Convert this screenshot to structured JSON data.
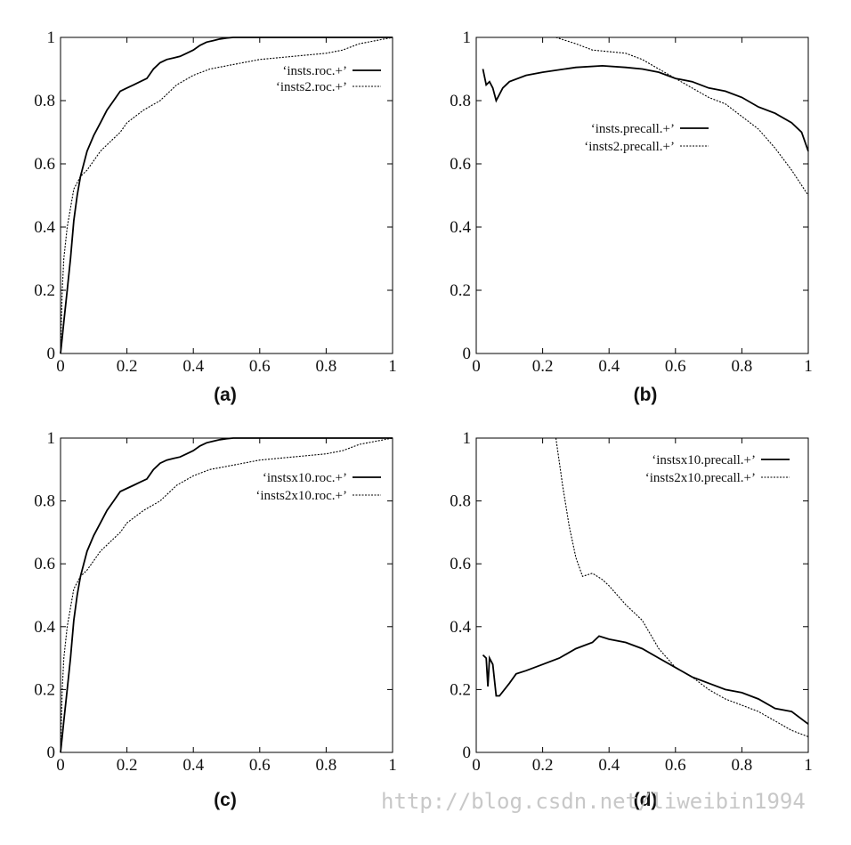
{
  "figure": {
    "watermark": "http://blog.csdn.net/liweibin1994"
  },
  "chart_data": [
    {
      "type": "line",
      "caption": "(a)",
      "xlim": [
        0,
        1
      ],
      "ylim": [
        0,
        1
      ],
      "xticks": [
        "0",
        "0.2",
        "0.4",
        "0.6",
        "0.8",
        "1"
      ],
      "yticks": [
        "0",
        "0.2",
        "0.4",
        "0.6",
        "0.8",
        "1"
      ],
      "legend_position": "top-right",
      "series": [
        {
          "name": "‘insts.roc.+’",
          "style": "solid",
          "x": [
            0,
            0.005,
            0.01,
            0.02,
            0.03,
            0.04,
            0.05,
            0.06,
            0.08,
            0.1,
            0.12,
            0.14,
            0.16,
            0.18,
            0.2,
            0.22,
            0.24,
            0.26,
            0.28,
            0.3,
            0.32,
            0.34,
            0.36,
            0.38,
            0.4,
            0.42,
            0.44,
            0.46,
            0.48,
            0.5,
            0.52,
            1
          ],
          "y": [
            0,
            0.05,
            0.1,
            0.2,
            0.3,
            0.42,
            0.5,
            0.56,
            0.64,
            0.69,
            0.73,
            0.77,
            0.8,
            0.83,
            0.84,
            0.85,
            0.86,
            0.87,
            0.9,
            0.92,
            0.93,
            0.935,
            0.94,
            0.95,
            0.96,
            0.975,
            0.985,
            0.99,
            0.995,
            0.998,
            1,
            1
          ]
        },
        {
          "name": "‘insts2.roc.+’",
          "style": "dashed",
          "x": [
            0,
            0.005,
            0.01,
            0.02,
            0.03,
            0.04,
            0.06,
            0.08,
            0.1,
            0.12,
            0.15,
            0.18,
            0.2,
            0.25,
            0.3,
            0.35,
            0.4,
            0.45,
            0.5,
            0.6,
            0.7,
            0.8,
            0.85,
            0.9,
            0.95,
            1
          ],
          "y": [
            0,
            0.2,
            0.3,
            0.4,
            0.46,
            0.52,
            0.56,
            0.58,
            0.61,
            0.64,
            0.67,
            0.7,
            0.73,
            0.77,
            0.8,
            0.85,
            0.88,
            0.9,
            0.91,
            0.93,
            0.94,
            0.95,
            0.96,
            0.98,
            0.99,
            1
          ]
        }
      ]
    },
    {
      "type": "line",
      "caption": "(b)",
      "xlim": [
        0,
        1
      ],
      "ylim": [
        0,
        1
      ],
      "xticks": [
        "0",
        "0.2",
        "0.4",
        "0.6",
        "0.8",
        "1"
      ],
      "yticks": [
        "0",
        "0.2",
        "0.4",
        "0.6",
        "0.8",
        "1"
      ],
      "legend_position": "right",
      "series": [
        {
          "name": "‘insts.precall.+’",
          "style": "solid",
          "x": [
            0.02,
            0.03,
            0.04,
            0.05,
            0.06,
            0.08,
            0.1,
            0.15,
            0.2,
            0.3,
            0.38,
            0.45,
            0.5,
            0.55,
            0.6,
            0.65,
            0.7,
            0.75,
            0.8,
            0.85,
            0.9,
            0.95,
            0.98,
            1
          ],
          "y": [
            0.9,
            0.85,
            0.86,
            0.84,
            0.8,
            0.84,
            0.86,
            0.88,
            0.89,
            0.905,
            0.91,
            0.905,
            0.9,
            0.89,
            0.87,
            0.86,
            0.84,
            0.83,
            0.81,
            0.78,
            0.76,
            0.73,
            0.7,
            0.64
          ]
        },
        {
          "name": "‘insts2.precall.+’",
          "style": "dashed",
          "x": [
            0.24,
            0.3,
            0.35,
            0.4,
            0.45,
            0.5,
            0.55,
            0.6,
            0.65,
            0.7,
            0.75,
            0.8,
            0.85,
            0.9,
            0.95,
            1
          ],
          "y": [
            1,
            0.98,
            0.96,
            0.955,
            0.95,
            0.93,
            0.9,
            0.87,
            0.84,
            0.81,
            0.79,
            0.75,
            0.71,
            0.65,
            0.58,
            0.5
          ]
        }
      ]
    },
    {
      "type": "line",
      "caption": "(c)",
      "xlim": [
        0,
        1
      ],
      "ylim": [
        0,
        1
      ],
      "xticks": [
        "0",
        "0.2",
        "0.4",
        "0.6",
        "0.8",
        "1"
      ],
      "yticks": [
        "0",
        "0.2",
        "0.4",
        "0.6",
        "0.8",
        "1"
      ],
      "legend_position": "top-right",
      "series": [
        {
          "name": "‘instsx10.roc.+’",
          "style": "solid",
          "x": [
            0,
            0.005,
            0.01,
            0.02,
            0.03,
            0.04,
            0.05,
            0.06,
            0.08,
            0.1,
            0.12,
            0.14,
            0.16,
            0.18,
            0.2,
            0.22,
            0.24,
            0.26,
            0.28,
            0.3,
            0.32,
            0.34,
            0.36,
            0.38,
            0.4,
            0.42,
            0.44,
            0.46,
            0.48,
            0.5,
            0.52,
            1
          ],
          "y": [
            0,
            0.05,
            0.1,
            0.2,
            0.3,
            0.42,
            0.5,
            0.56,
            0.64,
            0.69,
            0.73,
            0.77,
            0.8,
            0.83,
            0.84,
            0.85,
            0.86,
            0.87,
            0.9,
            0.92,
            0.93,
            0.935,
            0.94,
            0.95,
            0.96,
            0.975,
            0.985,
            0.99,
            0.995,
            0.998,
            1,
            1
          ]
        },
        {
          "name": "‘insts2x10.roc.+’",
          "style": "dashed",
          "x": [
            0,
            0.005,
            0.01,
            0.02,
            0.03,
            0.04,
            0.06,
            0.08,
            0.1,
            0.12,
            0.15,
            0.18,
            0.2,
            0.25,
            0.3,
            0.35,
            0.4,
            0.45,
            0.5,
            0.6,
            0.7,
            0.8,
            0.85,
            0.9,
            0.95,
            1
          ],
          "y": [
            0,
            0.2,
            0.3,
            0.4,
            0.46,
            0.52,
            0.56,
            0.58,
            0.61,
            0.64,
            0.67,
            0.7,
            0.73,
            0.77,
            0.8,
            0.85,
            0.88,
            0.9,
            0.91,
            0.93,
            0.94,
            0.95,
            0.96,
            0.98,
            0.99,
            1
          ]
        }
      ]
    },
    {
      "type": "line",
      "caption": "(d)",
      "xlim": [
        0,
        1
      ],
      "ylim": [
        0,
        1
      ],
      "xticks": [
        "0",
        "0.2",
        "0.4",
        "0.6",
        "0.8",
        "1"
      ],
      "yticks": [
        "0",
        "0.2",
        "0.4",
        "0.6",
        "0.8",
        "1"
      ],
      "legend_position": "top-right",
      "series": [
        {
          "name": "‘instsx10.precall.+’",
          "style": "solid",
          "x": [
            0.02,
            0.03,
            0.035,
            0.04,
            0.05,
            0.06,
            0.07,
            0.1,
            0.12,
            0.15,
            0.2,
            0.25,
            0.3,
            0.35,
            0.37,
            0.4,
            0.45,
            0.5,
            0.55,
            0.6,
            0.65,
            0.7,
            0.75,
            0.8,
            0.85,
            0.9,
            0.95,
            1
          ],
          "y": [
            0.31,
            0.3,
            0.21,
            0.3,
            0.28,
            0.18,
            0.18,
            0.22,
            0.25,
            0.26,
            0.28,
            0.3,
            0.33,
            0.35,
            0.37,
            0.36,
            0.35,
            0.33,
            0.3,
            0.27,
            0.24,
            0.22,
            0.2,
            0.19,
            0.17,
            0.14,
            0.13,
            0.09
          ]
        },
        {
          "name": "‘insts2x10.precall.+’",
          "style": "dashed",
          "x": [
            0.24,
            0.26,
            0.28,
            0.3,
            0.32,
            0.35,
            0.38,
            0.4,
            0.45,
            0.5,
            0.55,
            0.6,
            0.65,
            0.7,
            0.75,
            0.8,
            0.85,
            0.9,
            0.95,
            1
          ],
          "y": [
            1,
            0.85,
            0.72,
            0.62,
            0.56,
            0.57,
            0.55,
            0.53,
            0.47,
            0.42,
            0.33,
            0.27,
            0.24,
            0.2,
            0.17,
            0.15,
            0.13,
            0.1,
            0.07,
            0.05
          ]
        }
      ]
    }
  ]
}
